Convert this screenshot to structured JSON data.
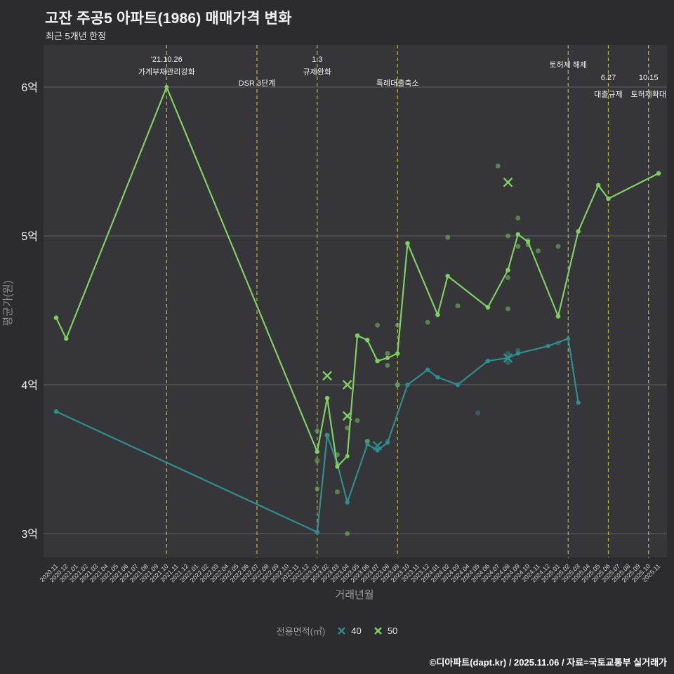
{
  "chart_data": {
    "type": "line",
    "title": "고잔 주공5 아파트(1986) 매매가격 변화",
    "subtitle": "최근 5개년 한정",
    "xlabel": "거래년월",
    "ylabel": "평균가(원)",
    "y_unit": "억원",
    "ylim": [
      2.85,
      6.15
    ],
    "grid": true,
    "yticks": [
      {
        "value": 3,
        "label": "3억"
      },
      {
        "value": 4,
        "label": "4억"
      },
      {
        "value": 5,
        "label": "5억"
      },
      {
        "value": 6,
        "label": "6억"
      }
    ],
    "x_categories": [
      "2020.11",
      "2020.12",
      "2021.01",
      "2021.02",
      "2021.03",
      "2021.04",
      "2021.05",
      "2021.06",
      "2021.07",
      "2021.08",
      "2021.09",
      "2021.10",
      "2021.11",
      "2021.12",
      "2022.01",
      "2022.02",
      "2022.03",
      "2022.04",
      "2022.05",
      "2022.06",
      "2022.07",
      "2022.08",
      "2022.09",
      "2022.10",
      "2022.11",
      "2022.12",
      "2023.01",
      "2023.02",
      "2023.03",
      "2023.04",
      "2023.05",
      "2023.06",
      "2023.07",
      "2023.08",
      "2023.09",
      "2023.10",
      "2023.11",
      "2023.12",
      "2024.01",
      "2024.02",
      "2024.03",
      "2024.04",
      "2024.05",
      "2024.06",
      "2024.07",
      "2024.08",
      "2024.09",
      "2024.10",
      "2024.11",
      "2024.12",
      "2025.01",
      "2025.02",
      "2025.03",
      "2025.04",
      "2025.05",
      "2025.06",
      "2025.07",
      "2025.08",
      "2025.09",
      "2025.10",
      "2025.11"
    ],
    "colors": {
      "40": "#2f8e8e",
      "50": "#7ed15f",
      "event_line": "#b9b92b",
      "grid": "#5f5f64",
      "background": "#2c2c30",
      "plot_background": "#35353a",
      "text": "#f0f0f0",
      "muted_text": "#9a9a9a"
    },
    "legend": {
      "title": "전용면적(㎡)",
      "items": [
        "40",
        "50"
      ]
    },
    "series": [
      {
        "name": "40",
        "points": [
          [
            "2020.11",
            3.82
          ],
          [
            "2023.01",
            3.01
          ],
          [
            "2023.02",
            3.66
          ],
          [
            "2023.03",
            3.47
          ],
          [
            "2023.04",
            3.21
          ],
          [
            "2023.06",
            3.6
          ],
          [
            "2023.07",
            3.56
          ],
          [
            "2023.08",
            3.61
          ],
          [
            "2023.10",
            4.0
          ],
          [
            "2023.12",
            4.1
          ],
          [
            "2024.01",
            4.05
          ],
          [
            "2024.03",
            4.0
          ],
          [
            "2024.06",
            4.16
          ],
          [
            "2024.08",
            4.18
          ],
          [
            "2024.09",
            4.21
          ],
          [
            "2024.12",
            4.26
          ],
          [
            "2025.02",
            4.31
          ],
          [
            "2025.03",
            3.88
          ]
        ]
      },
      {
        "name": "50",
        "points": [
          [
            "2020.11",
            4.45
          ],
          [
            "2020.12",
            4.31
          ],
          [
            "2021.10",
            6.0
          ],
          [
            "2023.01",
            3.55
          ],
          [
            "2023.02",
            3.91
          ],
          [
            "2023.03",
            3.45
          ],
          [
            "2023.04",
            3.52
          ],
          [
            "2023.05",
            4.33
          ],
          [
            "2023.06",
            4.3
          ],
          [
            "2023.07",
            4.16
          ],
          [
            "2023.08",
            4.18
          ],
          [
            "2023.09",
            4.21
          ],
          [
            "2023.10",
            4.95
          ],
          [
            "2024.01",
            4.47
          ],
          [
            "2024.02",
            4.73
          ],
          [
            "2024.06",
            4.52
          ],
          [
            "2024.08",
            4.77
          ],
          [
            "2024.09",
            5.01
          ],
          [
            "2024.10",
            4.96
          ],
          [
            "2025.01",
            4.46
          ],
          [
            "2025.03",
            5.03
          ],
          [
            "2025.05",
            5.34
          ],
          [
            "2025.06",
            5.25
          ],
          [
            "2025.11",
            5.42
          ]
        ]
      }
    ],
    "scatter": [
      {
        "series": "40",
        "points": [
          [
            "2020.11",
            3.82
          ],
          [
            "2023.01",
            3.01
          ],
          [
            "2023.02",
            3.66
          ],
          [
            "2023.03",
            3.47
          ],
          [
            "2023.04",
            3.21
          ],
          [
            "2023.06",
            3.62
          ],
          [
            "2023.07",
            3.56
          ],
          [
            "2023.08",
            3.62
          ],
          [
            "2023.09",
            4.0
          ],
          [
            "2023.10",
            4.0
          ],
          [
            "2023.12",
            4.1
          ],
          [
            "2024.01",
            4.05
          ],
          [
            "2024.03",
            4.0
          ],
          [
            "2024.05",
            3.81
          ],
          [
            "2024.06",
            4.16
          ],
          [
            "2024.08",
            4.21
          ],
          [
            "2024.08",
            4.15
          ],
          [
            "2024.09",
            4.23
          ],
          [
            "2025.01",
            4.28
          ],
          [
            "2025.03",
            3.88
          ]
        ]
      },
      {
        "series": "50",
        "points": [
          [
            "2020.11",
            4.45
          ],
          [
            "2020.12",
            4.31
          ],
          [
            "2023.01",
            3.69
          ],
          [
            "2023.01",
            3.55
          ],
          [
            "2023.01",
            3.49
          ],
          [
            "2023.01",
            3.3
          ],
          [
            "2023.02",
            3.91
          ],
          [
            "2023.02",
            3.66
          ],
          [
            "2023.03",
            3.53
          ],
          [
            "2023.03",
            3.28
          ],
          [
            "2023.04",
            3.71
          ],
          [
            "2023.04",
            3.0
          ],
          [
            "2023.05",
            4.33
          ],
          [
            "2023.05",
            3.76
          ],
          [
            "2023.06",
            4.3
          ],
          [
            "2023.06",
            3.62
          ],
          [
            "2023.07",
            4.4
          ],
          [
            "2023.07",
            4.16
          ],
          [
            "2023.08",
            4.21
          ],
          [
            "2023.08",
            4.13
          ],
          [
            "2023.09",
            4.4
          ],
          [
            "2023.09",
            4.21
          ],
          [
            "2023.09",
            4.0
          ],
          [
            "2023.10",
            4.95
          ],
          [
            "2023.12",
            4.42
          ],
          [
            "2024.01",
            4.47
          ],
          [
            "2024.02",
            4.99
          ],
          [
            "2024.02",
            4.73
          ],
          [
            "2024.03",
            4.53
          ],
          [
            "2024.06",
            4.52
          ],
          [
            "2024.07",
            5.47
          ],
          [
            "2024.08",
            5.0
          ],
          [
            "2024.08",
            4.77
          ],
          [
            "2024.08",
            4.72
          ],
          [
            "2024.08",
            4.51
          ],
          [
            "2024.09",
            5.12
          ],
          [
            "2024.09",
            5.01
          ],
          [
            "2024.09",
            4.93
          ],
          [
            "2024.10",
            4.97
          ],
          [
            "2024.10",
            4.94
          ],
          [
            "2024.11",
            4.9
          ],
          [
            "2025.01",
            4.93
          ],
          [
            "2025.01",
            4.46
          ],
          [
            "2025.03",
            5.03
          ],
          [
            "2025.05",
            5.34
          ],
          [
            "2025.06",
            5.25
          ],
          [
            "2025.11",
            5.42
          ]
        ]
      }
    ],
    "x_markers": [
      {
        "series": "50",
        "points": [
          [
            "2023.02",
            4.06
          ],
          [
            "2023.04",
            4.0
          ],
          [
            "2023.04",
            3.79
          ],
          [
            "2024.08",
            5.36
          ]
        ]
      },
      {
        "series": "40",
        "points": [
          [
            "2023.07",
            3.59
          ],
          [
            "2024.08",
            4.18
          ]
        ]
      }
    ],
    "events": [
      {
        "x": "2021.10",
        "lines": [
          "'21.10.26",
          "가계부채관리강화"
        ]
      },
      {
        "x": "2022.07",
        "lines": [
          "DSR 3단계"
        ]
      },
      {
        "x": "2023.01",
        "lines": [
          "1.3",
          "규제완화"
        ]
      },
      {
        "x": "2023.09",
        "lines": [
          "특례대출축소"
        ]
      },
      {
        "x": "2025.02",
        "lines": [
          "토허제 해제"
        ]
      },
      {
        "x": "2025.06",
        "lines": [
          "6.27",
          "대출규제"
        ]
      },
      {
        "x": "2025.10",
        "lines": [
          "10.15",
          "토허제확대"
        ]
      }
    ],
    "footer": "©디아파트(dapt.kr) / 2025.11.06 / 자료=국토교통부 실거래가"
  }
}
